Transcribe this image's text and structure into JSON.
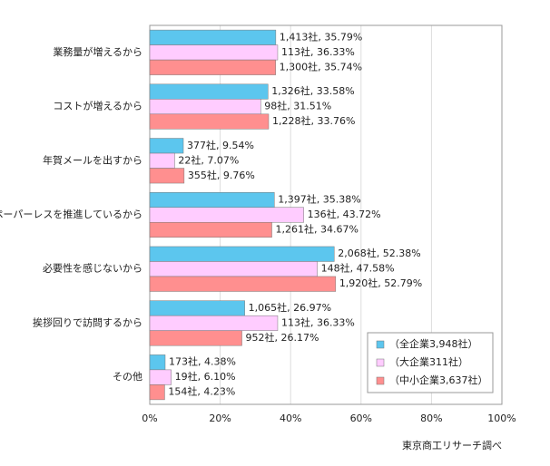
{
  "chart_data": {
    "type": "bar",
    "orientation": "horizontal",
    "categories": [
      "業務量が増えるから",
      "コストが増えるから",
      "年賀メールを出すから",
      "ペーパーレスを推進しているから",
      "必要性を感じないから",
      "挨拶回りで訪問するから",
      "その他"
    ],
    "series": [
      {
        "name": "（全企業3,948社）",
        "color": "#5cc6ee",
        "values": [
          35.79,
          33.58,
          9.54,
          35.38,
          52.38,
          26.97,
          4.38
        ],
        "value_labels": [
          "1,413社, 35.79%",
          "1,326社, 33.58%",
          "377社, 9.54%",
          "1,397社, 35.38%",
          "2,068社, 52.38%",
          "1,065社, 26.97%",
          "173社, 4.38%"
        ]
      },
      {
        "name": "（大企業311社）",
        "color": "#ffccff",
        "values": [
          36.33,
          31.51,
          7.07,
          43.72,
          47.58,
          36.33,
          6.1
        ],
        "value_labels": [
          "113社, 36.33%",
          "98社, 31.51%",
          "22社, 7.07%",
          "136社, 43.72%",
          "148社, 47.58%",
          "113社, 36.33%",
          "19社, 6.10%"
        ]
      },
      {
        "name": "（中小企業3,637社）",
        "color": "#ff8f8f",
        "values": [
          35.74,
          33.76,
          9.76,
          34.67,
          52.79,
          26.17,
          4.23
        ],
        "value_labels": [
          "1,300社, 35.74%",
          "1,228社, 33.76%",
          "355社, 9.76%",
          "1,261社, 34.67%",
          "1,920社, 52.79%",
          "952社, 26.17%",
          "154社, 4.23%"
        ]
      }
    ],
    "xlim": [
      0,
      100
    ],
    "xticks": [
      {
        "value": 0,
        "label": "0%"
      },
      {
        "value": 20,
        "label": "20%"
      },
      {
        "value": 40,
        "label": "40%"
      },
      {
        "value": 60,
        "label": "60%"
      },
      {
        "value": 80,
        "label": "80%"
      },
      {
        "value": 100,
        "label": "100%"
      }
    ],
    "grid": true,
    "legend_position": "lower right",
    "source": "東京商工リサーチ調べ"
  }
}
